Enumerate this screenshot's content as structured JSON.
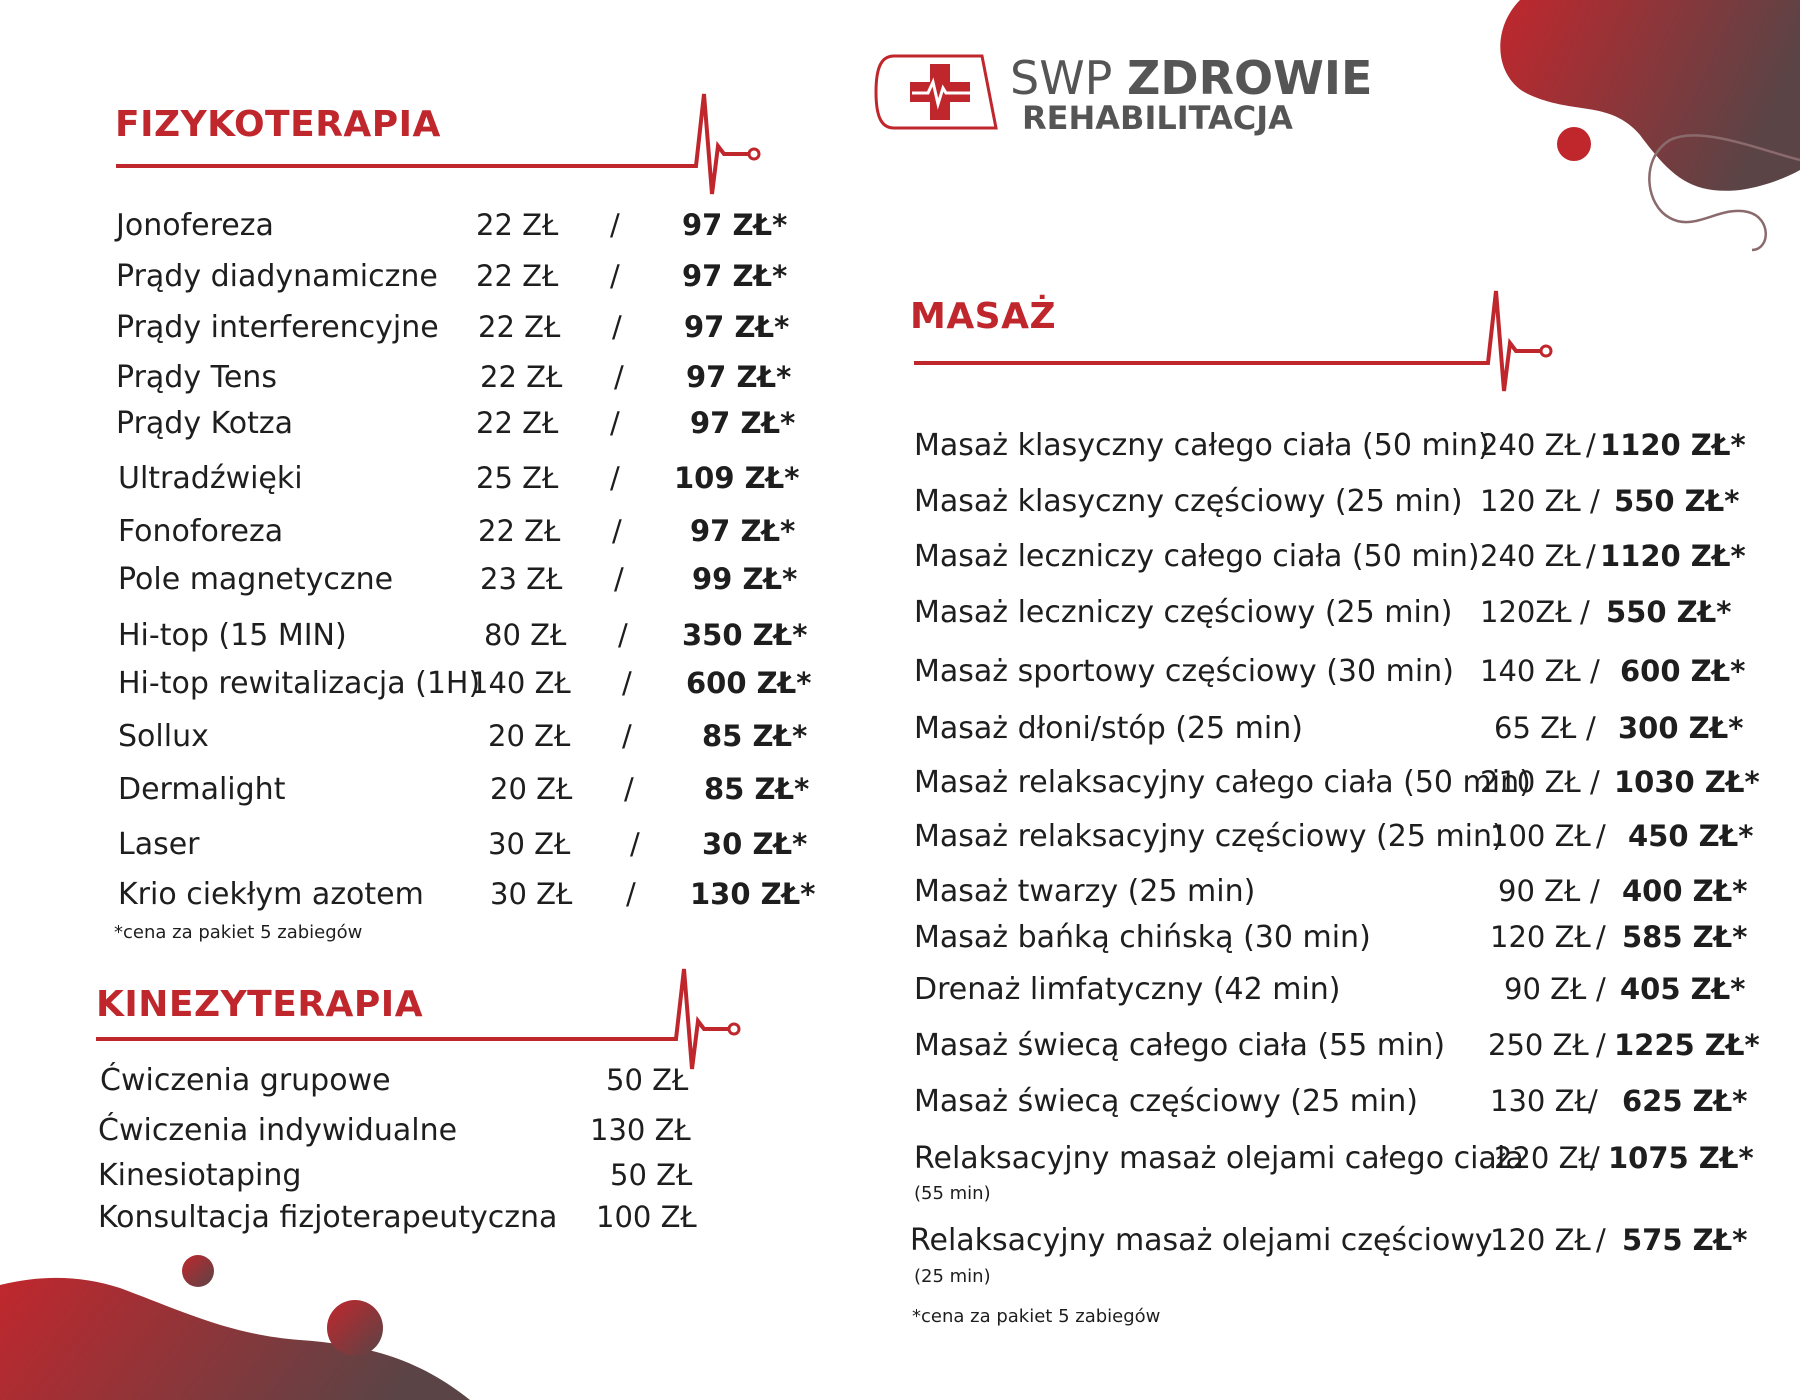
{
  "brand": {
    "name_light": "SWP",
    "name_bold": "ZDROWIE",
    "subtitle": "REHABILITACJA",
    "logo_icon": "medical-cross-heartbeat-icon",
    "accent_color": "#c0272d"
  },
  "fizykoterapia": {
    "title": "FIZYKOTERAPIA",
    "items": [
      {
        "name": "Jonofereza",
        "price": "22 ZŁ",
        "package": "97 ZŁ*"
      },
      {
        "name": "Prądy diadynamiczne",
        "price": "22 ZŁ",
        "package": "97 ZŁ*"
      },
      {
        "name": "Prądy interferencyjne",
        "price": "22 ZŁ",
        "package": "97 ZŁ*"
      },
      {
        "name": "Prądy Tens",
        "price": "22 ZŁ",
        "package": "97 ZŁ*"
      },
      {
        "name": "Prądy Kotza",
        "price": "22 ZŁ",
        "package": "97 ZŁ*"
      },
      {
        "name": "Ultradźwięki",
        "price": "25 ZŁ",
        "package": "109 ZŁ*"
      },
      {
        "name": "Fonoforeza",
        "price": "22 ZŁ",
        "package": "97 ZŁ*"
      },
      {
        "name": "Pole magnetyczne",
        "price": "23 ZŁ",
        "package": "99 ZŁ*"
      },
      {
        "name": "Hi-top (15 MIN)",
        "price": "80 ZŁ",
        "package": "350 ZŁ*"
      },
      {
        "name": "Hi-top rewitalizacja (1H)",
        "price": "140 ZŁ",
        "package": "600 ZŁ*"
      },
      {
        "name": "Sollux",
        "price": "20 ZŁ",
        "package": "85 ZŁ*"
      },
      {
        "name": "Dermalight",
        "price": "20 ZŁ",
        "package": "85 ZŁ*"
      },
      {
        "name": "Laser",
        "price": "30 ZŁ",
        "package": "30 ZŁ*"
      },
      {
        "name": "Krio ciekłym azotem",
        "price": "30 ZŁ",
        "package": "130 ZŁ*"
      }
    ],
    "separator": "/",
    "note": "*cena za pakiet 5 zabiegów"
  },
  "kinezyterapia": {
    "title": "KINEZYTERAPIA",
    "items": [
      {
        "name": "Ćwiczenia grupowe",
        "price": "50 ZŁ"
      },
      {
        "name": "Ćwiczenia indywidualne",
        "price": "130 ZŁ"
      },
      {
        "name": "Kinesiotaping",
        "price": "50 ZŁ"
      },
      {
        "name": "Konsultacja fizjoterapeutyczna",
        "price": "100 ZŁ"
      }
    ]
  },
  "masaz": {
    "title": "MASAŻ",
    "items": [
      {
        "name": "Masaż klasyczny całego ciała (50 min)",
        "price": "240 ZŁ",
        "sep": "/",
        "package": "1120 ZŁ*"
      },
      {
        "name": "Masaż klasyczny częściowy (25 min)",
        "price": "120 ZŁ",
        "sep": "/",
        "package": "550 ZŁ*"
      },
      {
        "name": "Masaż leczniczy całego ciała (50 min)",
        "price": "240 ZŁ",
        "sep": "/",
        "package": "1120 ZŁ*"
      },
      {
        "name": "Masaż leczniczy częściowy (25 min)",
        "price": "120ZŁ",
        "sep": "/",
        "package": "550 ZŁ*"
      },
      {
        "name": "Masaż sportowy częściowy (30 min)",
        "price": "140 ZŁ",
        "sep": "/",
        "package": "600 ZŁ*"
      },
      {
        "name": "Masaż dłoni/stóp (25 min)",
        "price": "65 ZŁ",
        "sep": "/",
        "package": "300 ZŁ*"
      },
      {
        "name": "Masaż relaksacyjny całego ciała (50 min)",
        "price": "210 ZŁ",
        "sep": "/",
        "package": "1030 ZŁ*"
      },
      {
        "name": "Masaż relaksacyjny częściowy (25 min)",
        "price": "100 ZŁ",
        "sep": "/",
        "package": "450 ZŁ*"
      },
      {
        "name": "Masaż twarzy (25 min)",
        "price": "90 ZŁ",
        "sep": "/",
        "package": "400 ZŁ*"
      },
      {
        "name": "Masaż bańką chińską (30 min)",
        "price": "120 ZŁ",
        "sep": "/",
        "package": "585 ZŁ*"
      },
      {
        "name": "Drenaż limfatyczny (42 min)",
        "price": "90 ZŁ",
        "sep": "/",
        "package": "405 ZŁ*"
      },
      {
        "name": "Masaż świecą całego ciała (55 min)",
        "price": "250 ZŁ",
        "sep": "/",
        "package": "1225 ZŁ*"
      },
      {
        "name": "Masaż świecą częściowy (25 min)",
        "price": "130 ZŁ",
        "sep": "/",
        "package": "625 ZŁ*"
      },
      {
        "name": "Relaksacyjny masaż olejami całego ciała",
        "sub": "(55 min)",
        "price": "220 ZŁ",
        "sep": "/",
        "package": "1075 ZŁ*"
      },
      {
        "name": "Relaksacyjny masaż olejami częściowy",
        "sub": "(25 min)",
        "price": "120 ZŁ",
        "sep": "/",
        "package": "575 ZŁ*"
      }
    ],
    "note": "*cena za pakiet 5 zabiegów"
  }
}
